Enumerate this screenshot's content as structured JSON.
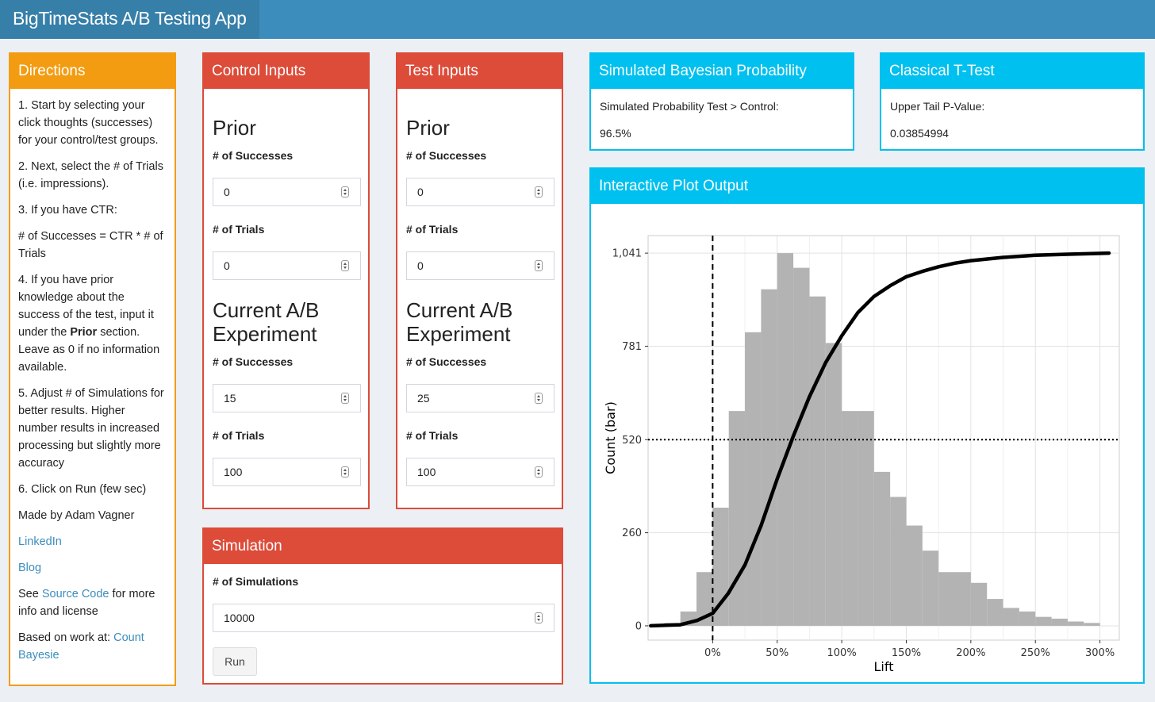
{
  "app": {
    "title": "BigTimeStats A/B Testing App"
  },
  "directions": {
    "header": "Directions",
    "steps": [
      "1. Start by selecting your click thoughts (successes) for your control/test groups.",
      "2. Next, select the # of Trials (i.e. impressions).",
      "3. If you have CTR:",
      "# of Successes = CTR * # of Trials",
      "4. If you have prior knowledge about the success of the test, input it under the",
      "Prior",
      "section. Leave as 0 if no information available.",
      "5. Adjust # of Simulations for better results. Higher number results in increased processing but slightly more accuracy",
      "6. Click on Run (few sec)",
      "Made by Adam Vagner"
    ],
    "linkedin": "LinkedIn",
    "blog": "Blog",
    "see": "See",
    "source_code": "Source Code",
    "source_suffix": "for more info and license",
    "based_on": "Based on work at:",
    "count_bayesie": "Count Bayesie"
  },
  "control": {
    "header": "Control Inputs",
    "prior_title": "Prior",
    "successes_label": "# of Successes",
    "trials_label": "# of Trials",
    "prior_successes": "0",
    "prior_trials": "0",
    "current_title_line1": "Current A/B",
    "current_title_line2": "Experiment",
    "current_successes": "15",
    "current_trials": "100"
  },
  "test": {
    "header": "Test Inputs",
    "prior_title": "Prior",
    "successes_label": "# of Successes",
    "trials_label": "# of Trials",
    "prior_successes": "0",
    "prior_trials": "0",
    "current_title_line1": "Current A/B",
    "current_title_line2": "Experiment",
    "current_successes": "25",
    "current_trials": "100"
  },
  "simulation": {
    "header": "Simulation",
    "label": "# of Simulations",
    "value": "10000",
    "run_label": "Run"
  },
  "bayes": {
    "header": "Simulated Bayesian Probability",
    "label": "Simulated Probability Test > Control:",
    "value": "96.5%"
  },
  "ttest": {
    "header": "Classical T-Test",
    "label": "Upper Tail P-Value:",
    "value": "0.03854994"
  },
  "plot": {
    "header": "Interactive Plot Output"
  },
  "chart_data": {
    "type": "bar",
    "xlabel": "Lift",
    "ylabel": "Count (bar)",
    "x_ticks": [
      "0%",
      "50%",
      "100%",
      "150%",
      "200%",
      "250%",
      "300%"
    ],
    "x_tick_values": [
      0,
      50,
      100,
      150,
      200,
      250,
      300
    ],
    "y_ticks": [
      "0",
      "260",
      "520",
      "781",
      "1,041"
    ],
    "y_tick_values": [
      0,
      260,
      520,
      781,
      1041
    ],
    "xlim": [
      -50,
      315
    ],
    "ylim": [
      -40,
      1090
    ],
    "bin_width": 12.5,
    "bins_start": [
      -50,
      -37.5,
      -25,
      -12.5,
      0,
      12.5,
      25,
      37.5,
      50,
      62.5,
      75,
      87.5,
      100,
      112.5,
      125,
      137.5,
      150,
      162.5,
      175,
      187.5,
      200,
      212.5,
      225,
      237.5,
      250,
      262.5,
      275,
      287.5
    ],
    "counts": [
      2,
      8,
      40,
      150,
      330,
      600,
      820,
      940,
      1041,
      1000,
      920,
      790,
      600,
      600,
      430,
      360,
      280,
      210,
      150,
      150,
      120,
      75,
      50,
      40,
      25,
      20,
      12,
      8
    ],
    "vline_x": 0,
    "vline_style": "dashed",
    "hline_y": 520,
    "hline_style": "dotted",
    "cdf_curve": {
      "x": [
        -48,
        -25,
        -12,
        0,
        12,
        25,
        37.5,
        50,
        62.5,
        75,
        87.5,
        100,
        112.5,
        125,
        137.5,
        150,
        162.5,
        175,
        187.5,
        200,
        225,
        250,
        275,
        307
      ],
      "y": [
        0,
        3,
        15,
        35,
        90,
        170,
        280,
        410,
        530,
        640,
        735,
        810,
        875,
        920,
        950,
        975,
        990,
        1003,
        1013,
        1020,
        1029,
        1035,
        1038,
        1041
      ]
    },
    "grid": true
  }
}
